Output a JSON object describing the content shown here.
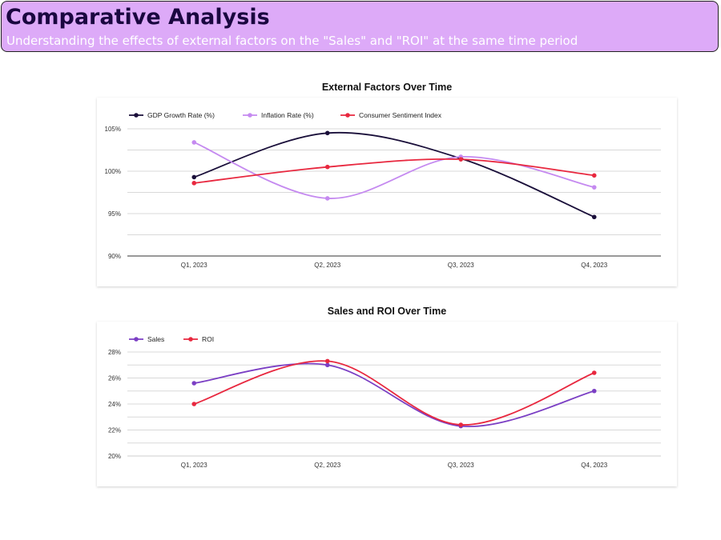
{
  "header": {
    "title": "Comparative Analysis",
    "subtitle": "Understanding the effects of external factors on the \"Sales\" and \"ROI\" at the same time period"
  },
  "colors": {
    "header_bg": "#ddaaf8",
    "header_title": "#1a0740",
    "gdp": "#1a0f3a",
    "inflation": "#c58af0",
    "sentiment": "#e8283f",
    "sales": "#7b3fc4",
    "roi": "#e8283f"
  },
  "chart_data": [
    {
      "type": "line",
      "title": "External Factors Over Time",
      "categories": [
        "Q1, 2023",
        "Q2, 2023",
        "Q3, 2023",
        "Q4, 2023"
      ],
      "series": [
        {
          "name": "GDP Growth Rate (%)",
          "values": [
            99.3,
            104.5,
            101.5,
            94.6
          ]
        },
        {
          "name": "Inflation Rate (%)",
          "values": [
            103.4,
            96.8,
            101.7,
            98.1
          ]
        },
        {
          "name": "Consumer Sentiment Index",
          "values": [
            98.6,
            100.5,
            101.4,
            99.5
          ]
        }
      ],
      "yticks": [
        "90%",
        "95%",
        "100%",
        "105%"
      ],
      "ylim": [
        90,
        105
      ],
      "legend": "top-left",
      "grid": true
    },
    {
      "type": "line",
      "title": "Sales and ROI Over Time",
      "categories": [
        "Q1, 2023",
        "Q2, 2023",
        "Q3, 2023",
        "Q4, 2023"
      ],
      "series": [
        {
          "name": "Sales",
          "values": [
            25.6,
            27.0,
            22.3,
            25.0
          ]
        },
        {
          "name": "ROI",
          "values": [
            24.0,
            27.3,
            22.4,
            26.4
          ]
        }
      ],
      "yticks": [
        "20%",
        "22%",
        "24%",
        "26%",
        "28%"
      ],
      "ylim": [
        20,
        28
      ],
      "legend": "top-left",
      "grid": true
    }
  ]
}
